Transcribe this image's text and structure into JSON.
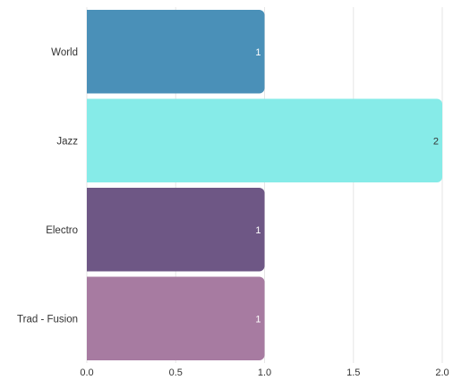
{
  "chart_data": {
    "type": "bar",
    "orientation": "horizontal",
    "categories": [
      "World",
      "Jazz",
      "Electro",
      "Trad - Fusion"
    ],
    "values": [
      1,
      2,
      1,
      1
    ],
    "colors": [
      "#4a90b8",
      "#86ebe8",
      "#6e5785",
      "#a77ba1"
    ],
    "label_colors": [
      "#ffffff",
      "#333333",
      "#ffffff",
      "#ffffff"
    ],
    "data_labels": [
      "1",
      "2",
      "1",
      "1"
    ],
    "xlim": [
      0,
      2
    ],
    "x_ticks": [
      "0.0",
      "0.5",
      "1.0",
      "1.5",
      "2.0"
    ],
    "grid": true,
    "title": "",
    "xlabel": "",
    "ylabel": ""
  }
}
